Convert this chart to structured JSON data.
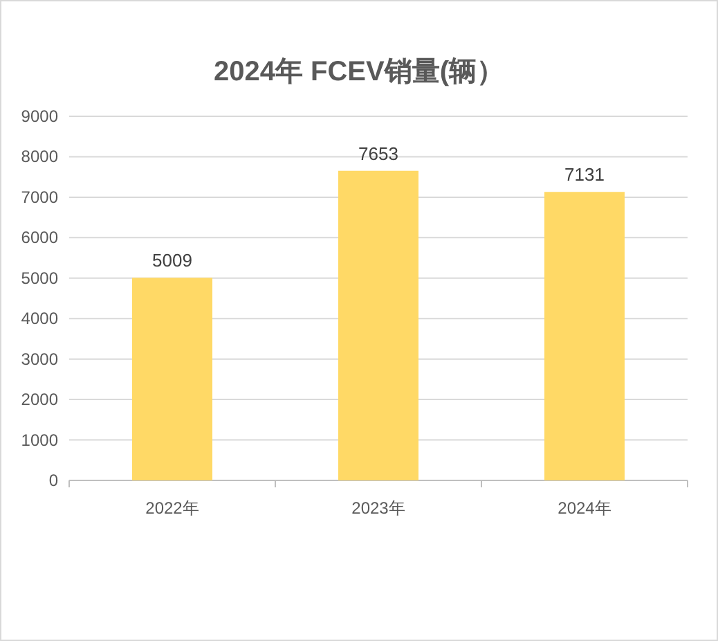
{
  "chart_data": {
    "type": "bar",
    "title": "2024年 FCEV销量(辆）",
    "categories": [
      "2022年",
      "2023年",
      "2024年"
    ],
    "values": [
      5009,
      7653,
      7131
    ],
    "color": "#ffd966",
    "ylim": [
      0,
      9000
    ],
    "yticks": [
      0,
      1000,
      2000,
      3000,
      4000,
      5000,
      6000,
      7000,
      8000,
      9000
    ],
    "grid": "y",
    "data_labels": true
  }
}
